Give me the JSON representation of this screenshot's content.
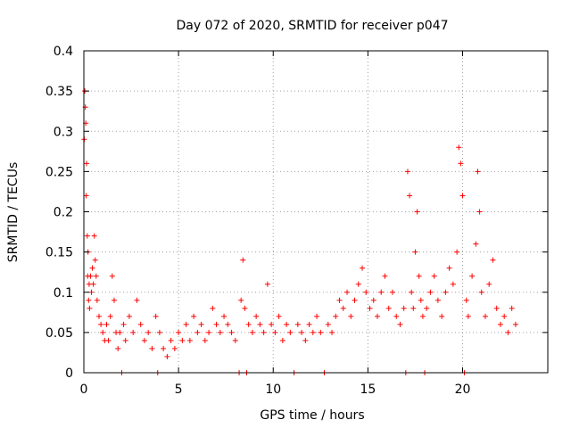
{
  "chart_data": {
    "type": "scatter",
    "title": "Day 072 of 2020, SRMTID for receiver p047",
    "xlabel": "GPS time / hours",
    "ylabel": "SRMTID / TECUs",
    "xlim": [
      0,
      24.5
    ],
    "ylim": [
      0,
      0.4
    ],
    "x_ticks": [
      0,
      5,
      10,
      15,
      20
    ],
    "x_tick_labels": [
      "0",
      "5",
      "10",
      "15",
      "20"
    ],
    "y_ticks": [
      0,
      0.05,
      0.1,
      0.15,
      0.2,
      0.25,
      0.3,
      0.35,
      0.4
    ],
    "y_tick_labels": [
      "0",
      "0.05",
      "0.1",
      "0.15",
      "0.2",
      "0.25",
      "0.3",
      "0.35",
      "0.4"
    ],
    "grid": true,
    "marker": "+",
    "series": [
      {
        "name": "SRMTID p047",
        "color": "#ff0000",
        "points": [
          [
            0.02,
            0.29
          ],
          [
            0.05,
            0.35
          ],
          [
            0.08,
            0.33
          ],
          [
            0.1,
            0.31
          ],
          [
            0.12,
            0.22
          ],
          [
            0.14,
            0.26
          ],
          [
            0.18,
            0.17
          ],
          [
            0.2,
            0.12
          ],
          [
            0.22,
            0.15
          ],
          [
            0.25,
            0.09
          ],
          [
            0.28,
            0.11
          ],
          [
            0.3,
            0.08
          ],
          [
            0.35,
            0.12
          ],
          [
            0.4,
            0.1
          ],
          [
            0.45,
            0.13
          ],
          [
            0.5,
            0.11
          ],
          [
            0.55,
            0.17
          ],
          [
            0.6,
            0.14
          ],
          [
            0.65,
            0.12
          ],
          [
            0.7,
            0.09
          ],
          [
            0.8,
            0.07
          ],
          [
            0.9,
            0.06
          ],
          [
            1.0,
            0.05
          ],
          [
            1.1,
            0.04
          ],
          [
            1.2,
            0.06
          ],
          [
            1.3,
            0.04
          ],
          [
            1.4,
            0.07
          ],
          [
            1.5,
            0.12
          ],
          [
            1.6,
            0.09
          ],
          [
            1.7,
            0.05
          ],
          [
            1.8,
            0.03
          ],
          [
            1.9,
            0.05
          ],
          [
            2.0,
            0.0
          ],
          [
            2.1,
            0.06
          ],
          [
            2.2,
            0.04
          ],
          [
            2.4,
            0.07
          ],
          [
            2.6,
            0.05
          ],
          [
            2.8,
            0.09
          ],
          [
            3.0,
            0.06
          ],
          [
            3.2,
            0.04
          ],
          [
            3.4,
            0.05
          ],
          [
            3.6,
            0.03
          ],
          [
            3.8,
            0.07
          ],
          [
            3.9,
            0.0
          ],
          [
            4.0,
            0.05
          ],
          [
            4.2,
            0.03
          ],
          [
            4.4,
            0.02
          ],
          [
            4.6,
            0.04
          ],
          [
            4.8,
            0.03
          ],
          [
            5.0,
            0.05
          ],
          [
            5.2,
            0.04
          ],
          [
            5.4,
            0.06
          ],
          [
            5.6,
            0.04
          ],
          [
            5.8,
            0.07
          ],
          [
            6.0,
            0.05
          ],
          [
            6.2,
            0.06
          ],
          [
            6.4,
            0.04
          ],
          [
            6.6,
            0.05
          ],
          [
            6.8,
            0.08
          ],
          [
            7.0,
            0.06
          ],
          [
            7.2,
            0.05
          ],
          [
            7.4,
            0.07
          ],
          [
            7.6,
            0.06
          ],
          [
            7.8,
            0.05
          ],
          [
            8.0,
            0.04
          ],
          [
            8.2,
            0.0
          ],
          [
            8.3,
            0.09
          ],
          [
            8.4,
            0.14
          ],
          [
            8.5,
            0.08
          ],
          [
            8.6,
            0.0
          ],
          [
            8.7,
            0.06
          ],
          [
            8.9,
            0.05
          ],
          [
            9.1,
            0.07
          ],
          [
            9.3,
            0.06
          ],
          [
            9.5,
            0.05
          ],
          [
            9.7,
            0.11
          ],
          [
            9.9,
            0.06
          ],
          [
            10.1,
            0.05
          ],
          [
            10.3,
            0.07
          ],
          [
            10.5,
            0.04
          ],
          [
            10.7,
            0.06
          ],
          [
            10.9,
            0.05
          ],
          [
            11.1,
            0.0
          ],
          [
            11.3,
            0.06
          ],
          [
            11.5,
            0.05
          ],
          [
            11.7,
            0.04
          ],
          [
            11.9,
            0.06
          ],
          [
            12.1,
            0.05
          ],
          [
            12.3,
            0.07
          ],
          [
            12.5,
            0.05
          ],
          [
            12.7,
            0.0
          ],
          [
            12.9,
            0.06
          ],
          [
            13.1,
            0.05
          ],
          [
            13.3,
            0.07
          ],
          [
            13.5,
            0.09
          ],
          [
            13.7,
            0.08
          ],
          [
            13.9,
            0.1
          ],
          [
            14.1,
            0.07
          ],
          [
            14.3,
            0.09
          ],
          [
            14.5,
            0.11
          ],
          [
            14.7,
            0.13
          ],
          [
            14.9,
            0.1
          ],
          [
            15.1,
            0.08
          ],
          [
            15.3,
            0.09
          ],
          [
            15.5,
            0.07
          ],
          [
            15.7,
            0.1
          ],
          [
            15.9,
            0.12
          ],
          [
            16.1,
            0.08
          ],
          [
            16.3,
            0.1
          ],
          [
            16.5,
            0.07
          ],
          [
            16.7,
            0.06
          ],
          [
            16.9,
            0.08
          ],
          [
            17.0,
            0.0
          ],
          [
            17.1,
            0.25
          ],
          [
            17.2,
            0.22
          ],
          [
            17.3,
            0.1
          ],
          [
            17.4,
            0.08
          ],
          [
            17.5,
            0.15
          ],
          [
            17.6,
            0.2
          ],
          [
            17.7,
            0.12
          ],
          [
            17.8,
            0.09
          ],
          [
            17.9,
            0.07
          ],
          [
            18.0,
            0.0
          ],
          [
            18.1,
            0.08
          ],
          [
            18.3,
            0.1
          ],
          [
            18.5,
            0.12
          ],
          [
            18.7,
            0.09
          ],
          [
            18.9,
            0.07
          ],
          [
            19.1,
            0.1
          ],
          [
            19.3,
            0.13
          ],
          [
            19.5,
            0.11
          ],
          [
            19.7,
            0.15
          ],
          [
            19.8,
            0.28
          ],
          [
            19.9,
            0.26
          ],
          [
            20.0,
            0.22
          ],
          [
            20.1,
            0.0
          ],
          [
            20.2,
            0.09
          ],
          [
            20.3,
            0.07
          ],
          [
            20.5,
            0.12
          ],
          [
            20.7,
            0.16
          ],
          [
            20.8,
            0.25
          ],
          [
            20.9,
            0.2
          ],
          [
            21.0,
            0.1
          ],
          [
            21.2,
            0.07
          ],
          [
            21.4,
            0.11
          ],
          [
            21.6,
            0.14
          ],
          [
            21.8,
            0.08
          ],
          [
            22.0,
            0.06
          ],
          [
            22.2,
            0.07
          ],
          [
            22.4,
            0.05
          ],
          [
            22.6,
            0.08
          ],
          [
            22.8,
            0.06
          ]
        ]
      }
    ]
  }
}
